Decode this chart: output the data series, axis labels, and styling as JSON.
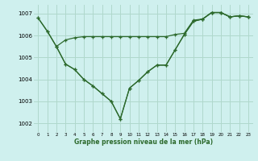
{
  "title": "Graphe pression niveau de la mer (hPa)",
  "background_color": "#cff0ee",
  "grid_color": "#b0d8cc",
  "line_color": "#2d6a2d",
  "xlim": [
    -0.5,
    23.5
  ],
  "ylim": [
    1001.6,
    1007.4
  ],
  "yticks": [
    1002,
    1003,
    1004,
    1005,
    1006,
    1007
  ],
  "xticks": [
    0,
    1,
    2,
    3,
    4,
    5,
    6,
    7,
    8,
    9,
    10,
    11,
    12,
    13,
    14,
    15,
    16,
    17,
    18,
    19,
    20,
    21,
    22,
    23
  ],
  "line1_x": [
    0,
    1,
    2,
    3,
    4,
    5,
    6,
    7,
    8,
    9,
    10,
    11,
    12,
    13,
    14,
    15,
    16,
    17,
    18,
    19,
    20,
    21,
    22,
    23
  ],
  "line1_y": [
    1006.8,
    1006.2,
    1005.5,
    1005.8,
    1005.9,
    1005.95,
    1005.95,
    1005.95,
    1005.95,
    1005.95,
    1005.95,
    1005.95,
    1005.95,
    1005.95,
    1005.95,
    1006.05,
    1006.1,
    1006.7,
    1006.75,
    1007.05,
    1007.05,
    1006.85,
    1006.9,
    1006.85
  ],
  "line2_x": [
    0,
    1,
    2,
    3,
    4,
    5,
    6,
    7,
    8,
    9,
    10,
    11,
    12,
    13,
    14,
    15,
    16,
    17,
    18,
    19,
    20,
    21,
    22,
    23
  ],
  "line2_y": [
    1006.8,
    1006.2,
    1005.5,
    1004.7,
    1004.45,
    1004.0,
    1003.7,
    1003.35,
    1003.0,
    1002.2,
    1003.6,
    1003.95,
    1004.35,
    1004.65,
    1004.65,
    1005.35,
    1006.05,
    1006.65,
    1006.75,
    1007.05,
    1007.05,
    1006.85,
    1006.9,
    1006.85
  ],
  "line3_x": [
    2,
    3,
    4,
    5,
    6,
    7,
    8,
    9,
    10,
    11,
    12,
    13,
    14,
    15,
    16,
    17,
    18,
    19,
    20,
    21,
    22,
    23
  ],
  "line3_y": [
    1005.5,
    1004.7,
    1004.45,
    1004.0,
    1003.7,
    1003.35,
    1003.0,
    1002.2,
    1003.6,
    1003.95,
    1004.35,
    1004.65,
    1004.65,
    1005.35,
    1006.05,
    1006.65,
    1006.75,
    1007.05,
    1007.05,
    1006.85,
    1006.9,
    1006.85
  ]
}
